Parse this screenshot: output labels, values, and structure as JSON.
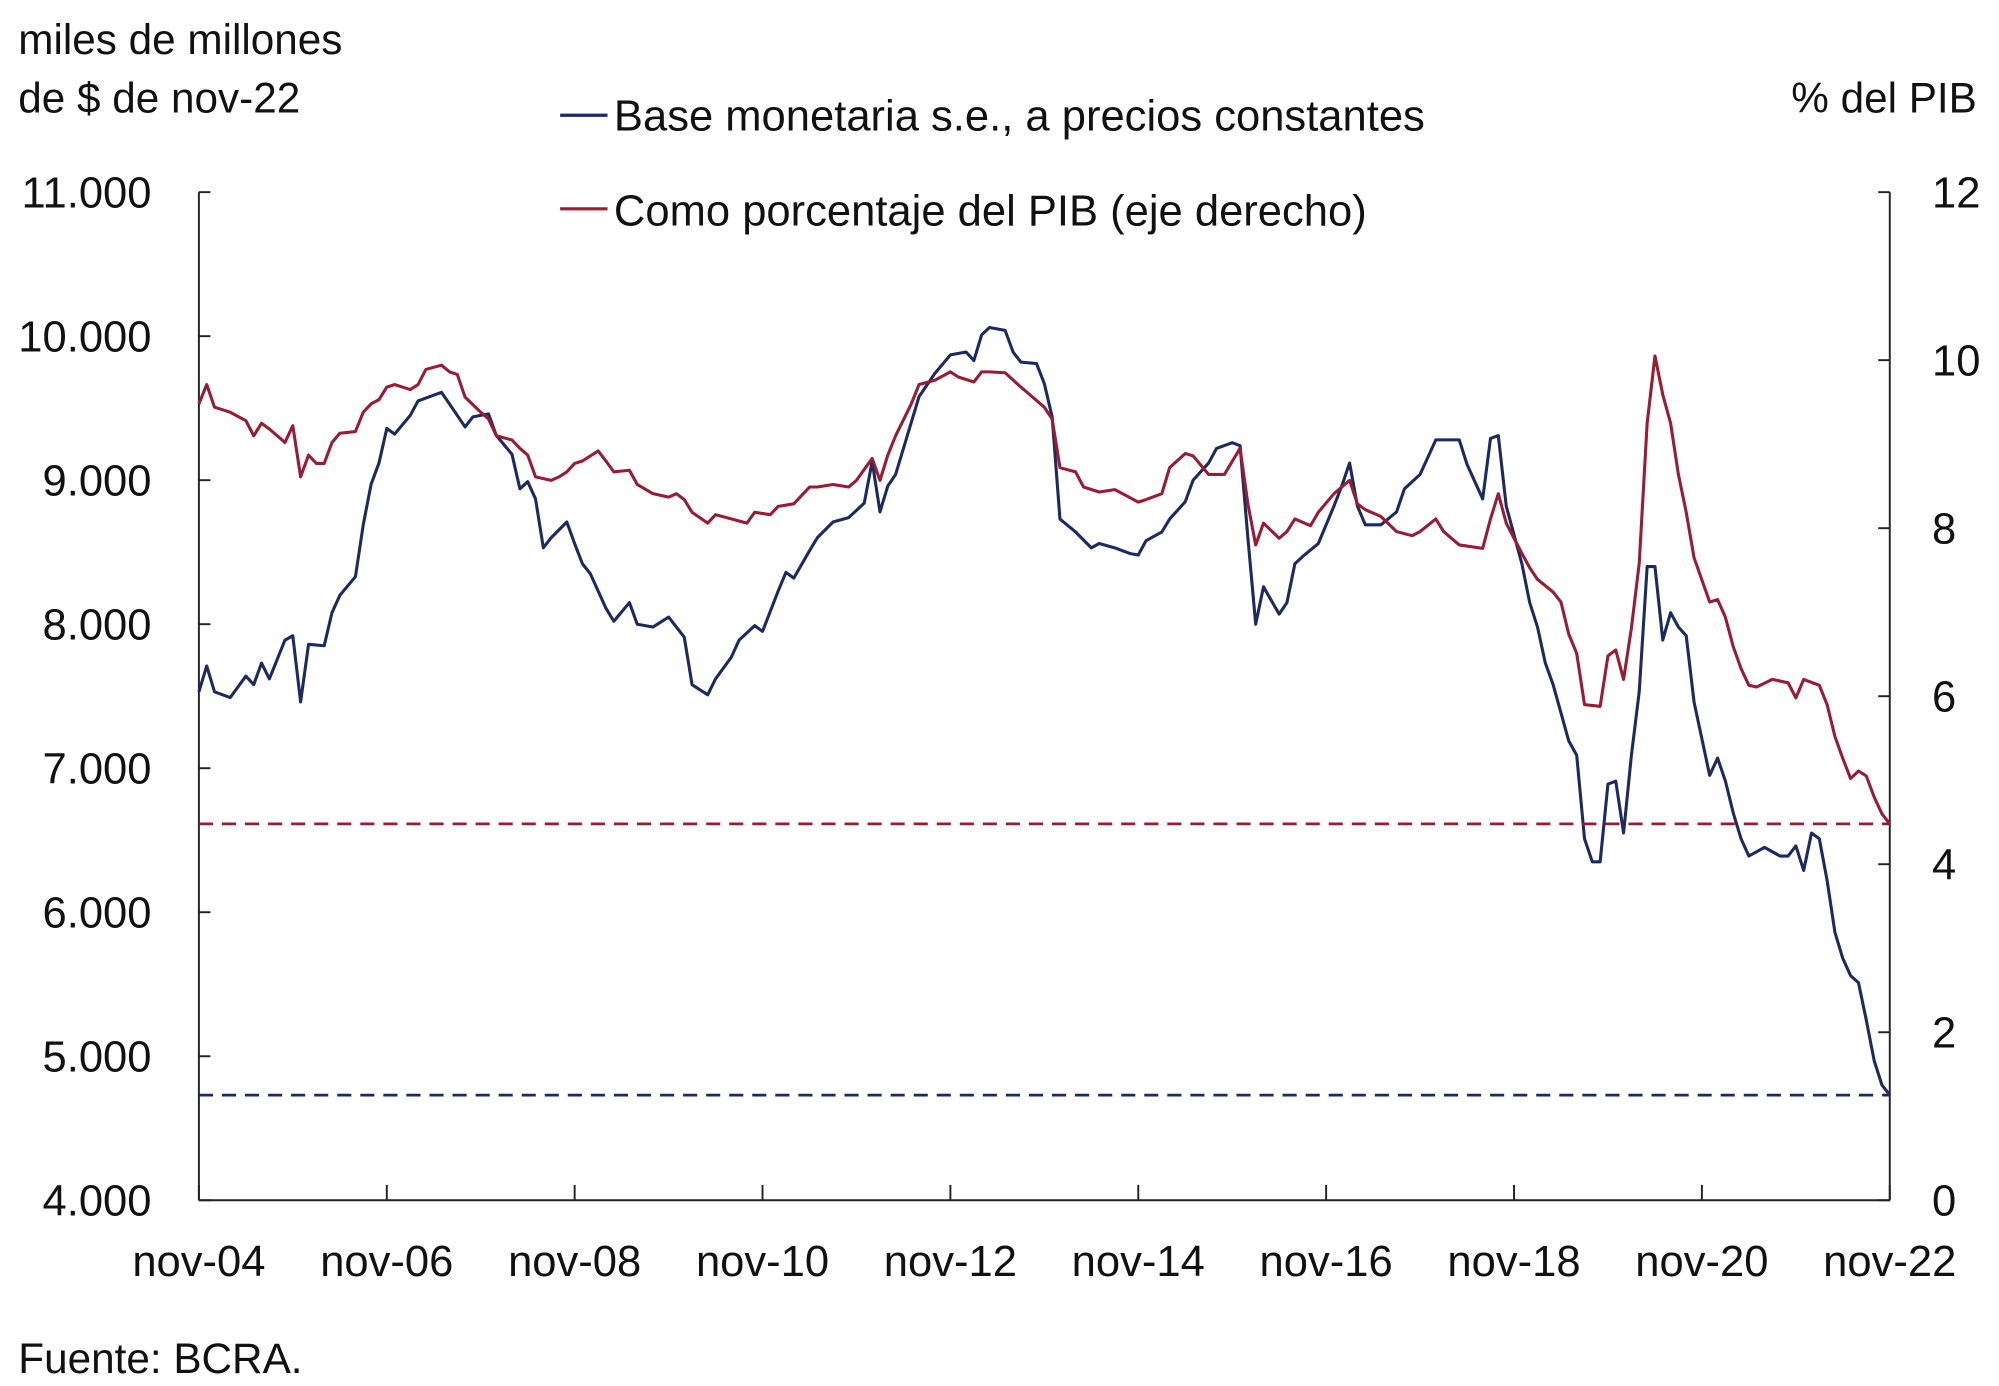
{
  "chart_data": {
    "type": "line",
    "left_axis_label_line1": "miles de millones",
    "left_axis_label_line2": "de $ de nov-22",
    "right_axis_label": "% del PIB",
    "source": "Fuente: BCRA.",
    "legend_placement": "top-center",
    "grid": false,
    "x_ticks": [
      "nov-04",
      "nov-06",
      "nov-08",
      "nov-10",
      "nov-12",
      "nov-14",
      "nov-16",
      "nov-18",
      "nov-20",
      "nov-22"
    ],
    "x_range": [
      "2004-11",
      "2022-11"
    ],
    "y_left": {
      "range": [
        4000,
        11000
      ],
      "ticks": [
        "4.000",
        "5.000",
        "6.000",
        "7.000",
        "8.000",
        "9.000",
        "10.000",
        "11.000"
      ]
    },
    "y_right": {
      "range": [
        0,
        12
      ],
      "ticks": [
        "0",
        "2",
        "4",
        "6",
        "8",
        "10",
        "12"
      ]
    },
    "series": [
      {
        "name": "Base monetaria s.e., a precios constantes",
        "axis": "left",
        "color": "#1b2a63",
        "x": [
          "2004-11",
          "2004-12",
          "2005-01",
          "2005-03",
          "2005-05",
          "2005-06",
          "2005-07",
          "2005-08",
          "2005-10",
          "2005-11",
          "2005-12",
          "2006-01",
          "2006-03",
          "2006-04",
          "2006-05",
          "2006-07",
          "2006-08",
          "2006-09",
          "2006-10",
          "2006-11",
          "2006-12",
          "2007-02",
          "2007-03",
          "2007-06",
          "2007-07",
          "2007-09",
          "2007-10",
          "2007-12",
          "2008-01",
          "2008-03",
          "2008-04",
          "2008-05",
          "2008-06",
          "2008-07",
          "2008-08",
          "2008-10",
          "2008-11",
          "2008-12",
          "2009-01",
          "2009-03",
          "2009-04",
          "2009-06",
          "2009-07",
          "2009-09",
          "2009-11",
          "2010-01",
          "2010-02",
          "2010-04",
          "2010-05",
          "2010-07",
          "2010-08",
          "2010-10",
          "2010-11",
          "2011-01",
          "2011-02",
          "2011-03",
          "2011-05",
          "2011-06",
          "2011-08",
          "2011-10",
          "2011-12",
          "2012-01",
          "2012-02",
          "2012-03",
          "2012-04",
          "2012-06",
          "2012-07",
          "2012-09",
          "2012-11",
          "2013-01",
          "2013-02",
          "2013-03",
          "2013-04",
          "2013-06",
          "2013-07",
          "2013-08",
          "2013-10",
          "2013-11",
          "2013-12",
          "2014-01",
          "2014-03",
          "2014-05",
          "2014-06",
          "2014-08",
          "2014-10",
          "2014-11",
          "2014-12",
          "2015-02",
          "2015-03",
          "2015-05",
          "2015-06",
          "2015-08",
          "2015-09",
          "2015-11",
          "2015-12",
          "2016-01",
          "2016-02",
          "2016-03",
          "2016-05",
          "2016-06",
          "2016-07",
          "2016-08",
          "2016-10",
          "2016-12",
          "2017-01",
          "2017-02",
          "2017-03",
          "2017-04",
          "2017-06",
          "2017-08",
          "2017-09",
          "2017-11",
          "2018-01",
          "2018-02",
          "2018-04",
          "2018-05",
          "2018-07",
          "2018-08",
          "2018-09",
          "2018-10",
          "2018-12",
          "2019-01",
          "2019-02",
          "2019-03",
          "2019-04",
          "2019-06",
          "2019-07",
          "2019-08",
          "2019-09",
          "2019-10",
          "2019-11",
          "2019-12",
          "2020-01",
          "2020-02",
          "2020-03",
          "2020-04",
          "2020-05",
          "2020-06",
          "2020-07",
          "2020-08",
          "2020-09",
          "2020-10",
          "2020-12",
          "2021-01",
          "2021-02",
          "2021-03",
          "2021-04",
          "2021-05",
          "2021-07",
          "2021-09",
          "2021-10",
          "2021-11",
          "2021-12",
          "2022-01",
          "2022-02",
          "2022-03",
          "2022-04",
          "2022-05",
          "2022-06",
          "2022-07",
          "2022-08",
          "2022-09",
          "2022-10",
          "2022-11"
        ],
        "y": [
          7530,
          7710,
          7530,
          7490,
          7640,
          7580,
          7730,
          7620,
          7890,
          7920,
          7460,
          7860,
          7850,
          8080,
          8200,
          8330,
          8690,
          8970,
          9120,
          9360,
          9320,
          9450,
          9550,
          9610,
          9530,
          9370,
          9440,
          9460,
          9310,
          9180,
          8940,
          8990,
          8870,
          8530,
          8600,
          8710,
          8560,
          8420,
          8350,
          8110,
          8020,
          8150,
          8000,
          7980,
          8050,
          7910,
          7580,
          7510,
          7620,
          7770,
          7890,
          7990,
          7950,
          8230,
          8360,
          8320,
          8510,
          8600,
          8710,
          8740,
          8840,
          9130,
          8780,
          8960,
          9040,
          9400,
          9580,
          9740,
          9870,
          9890,
          9830,
          10010,
          10060,
          10040,
          9890,
          9820,
          9810,
          9670,
          9440,
          8730,
          8640,
          8530,
          8560,
          8530,
          8490,
          8480,
          8580,
          8640,
          8730,
          8850,
          9000,
          9120,
          9220,
          9260,
          9240,
          8600,
          8000,
          8260,
          8070,
          8150,
          8420,
          8470,
          8560,
          8820,
          8960,
          9120,
          8820,
          8690,
          8690,
          8780,
          8940,
          9040,
          9280,
          9280,
          9280,
          9110,
          8870,
          9290,
          9310,
          8820,
          8420,
          8150,
          7980,
          7730,
          7580,
          7190,
          7090,
          6510,
          6350,
          6350,
          6890,
          6910,
          6550,
          7090,
          7530,
          8400,
          8400,
          7890,
          8080,
          7980,
          7920,
          7460,
          6950,
          7070,
          6910,
          6690,
          6510,
          6390,
          6450,
          6390,
          6390,
          6460,
          6290,
          6550,
          6510,
          6220,
          5860,
          5680,
          5560,
          5510,
          5250,
          4970,
          4800,
          4730
        ],
        "reference_line": 4730
      },
      {
        "name": "Como porcentaje del PIB (eje derecho)",
        "axis": "right",
        "color": "#9b1b32",
        "x": [
          "2004-11",
          "2004-12",
          "2005-01",
          "2005-03",
          "2005-05",
          "2005-06",
          "2005-07",
          "2005-08",
          "2005-10",
          "2005-11",
          "2005-12",
          "2006-01",
          "2006-02",
          "2006-03",
          "2006-04",
          "2006-05",
          "2006-07",
          "2006-08",
          "2006-09",
          "2006-10",
          "2006-11",
          "2006-12",
          "2007-02",
          "2007-03",
          "2007-04",
          "2007-06",
          "2007-07",
          "2007-08",
          "2007-09",
          "2007-11",
          "2007-12",
          "2008-01",
          "2008-03",
          "2008-04",
          "2008-05",
          "2008-06",
          "2008-08",
          "2008-09",
          "2008-10",
          "2008-11",
          "2008-12",
          "2009-02",
          "2009-03",
          "2009-04",
          "2009-06",
          "2009-07",
          "2009-09",
          "2009-11",
          "2009-12",
          "2010-01",
          "2010-02",
          "2010-04",
          "2010-05",
          "2010-07",
          "2010-09",
          "2010-10",
          "2010-12",
          "2011-01",
          "2011-03",
          "2011-05",
          "2011-06",
          "2011-08",
          "2011-10",
          "2011-11",
          "2012-01",
          "2012-02",
          "2012-03",
          "2012-04",
          "2012-06",
          "2012-07",
          "2012-09",
          "2012-11",
          "2012-12",
          "2013-02",
          "2013-03",
          "2013-04",
          "2013-06",
          "2013-08",
          "2013-09",
          "2013-11",
          "2013-12",
          "2014-01",
          "2014-03",
          "2014-04",
          "2014-06",
          "2014-08",
          "2014-09",
          "2014-11",
          "2014-12",
          "2015-02",
          "2015-03",
          "2015-05",
          "2015-06",
          "2015-08",
          "2015-10",
          "2015-12",
          "2016-01",
          "2016-02",
          "2016-03",
          "2016-05",
          "2016-06",
          "2016-07",
          "2016-09",
          "2016-10",
          "2016-12",
          "2017-02",
          "2017-03",
          "2017-04",
          "2017-06",
          "2017-08",
          "2017-10",
          "2017-11",
          "2018-01",
          "2018-02",
          "2018-04",
          "2018-07",
          "2018-08",
          "2018-09",
          "2018-10",
          "2018-12",
          "2019-01",
          "2019-02",
          "2019-04",
          "2019-05",
          "2019-06",
          "2019-07",
          "2019-08",
          "2019-10",
          "2019-11",
          "2019-12",
          "2020-01",
          "2020-02",
          "2020-03",
          "2020-04",
          "2020-05",
          "2020-06",
          "2020-07",
          "2020-08",
          "2020-09",
          "2020-10",
          "2020-12",
          "2021-01",
          "2021-02",
          "2021-03",
          "2021-04",
          "2021-05",
          "2021-06",
          "2021-08",
          "2021-10",
          "2021-11",
          "2021-12",
          "2022-02",
          "2022-03",
          "2022-04",
          "2022-05",
          "2022-06",
          "2022-07",
          "2022-08",
          "2022-09",
          "2022-10",
          "2022-11"
        ],
        "y": [
          9.48,
          9.71,
          9.44,
          9.38,
          9.28,
          9.1,
          9.25,
          9.18,
          9.02,
          9.22,
          8.61,
          8.87,
          8.77,
          8.77,
          9.02,
          9.13,
          9.15,
          9.38,
          9.48,
          9.53,
          9.68,
          9.71,
          9.65,
          9.71,
          9.89,
          9.94,
          9.86,
          9.83,
          9.56,
          9.38,
          9.3,
          9.1,
          9.05,
          8.95,
          8.87,
          8.61,
          8.57,
          8.61,
          8.67,
          8.77,
          8.8,
          8.92,
          8.8,
          8.67,
          8.69,
          8.52,
          8.41,
          8.37,
          8.41,
          8.34,
          8.19,
          8.06,
          8.16,
          8.11,
          8.06,
          8.19,
          8.16,
          8.26,
          8.29,
          8.49,
          8.49,
          8.52,
          8.49,
          8.57,
          8.83,
          8.57,
          8.87,
          9.1,
          9.48,
          9.71,
          9.76,
          9.86,
          9.8,
          9.74,
          9.86,
          9.86,
          9.85,
          9.68,
          9.6,
          9.44,
          9.3,
          8.72,
          8.67,
          8.49,
          8.43,
          8.46,
          8.41,
          8.31,
          8.34,
          8.41,
          8.72,
          8.89,
          8.86,
          8.64,
          8.64,
          8.95,
          8.29,
          7.8,
          8.06,
          7.88,
          7.96,
          8.11,
          8.03,
          8.19,
          8.41,
          8.57,
          8.29,
          8.22,
          8.14,
          7.96,
          7.91,
          7.96,
          8.11,
          7.96,
          7.8,
          7.76,
          8.11,
          8.41,
          8.06,
          7.7,
          7.53,
          7.39,
          7.24,
          7.12,
          6.74,
          6.51,
          5.9,
          5.88,
          6.48,
          6.55,
          6.2,
          6.81,
          7.58,
          9.25,
          10.05,
          9.59,
          9.25,
          8.64,
          8.19,
          7.65,
          7.12,
          7.15,
          6.94,
          6.59,
          6.33,
          6.13,
          6.11,
          6.2,
          6.16,
          5.98,
          6.2,
          6.13,
          5.9,
          5.52,
          5.26,
          5.02,
          5.11,
          5.05,
          4.8,
          4.6,
          4.48
        ],
        "reference_line": 4.48
      }
    ]
  }
}
